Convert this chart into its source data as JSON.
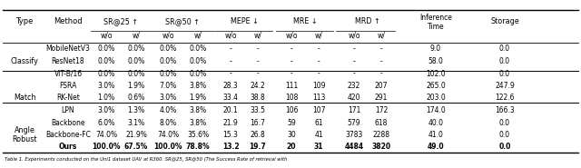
{
  "sections": [
    {
      "type": "Classify",
      "rows": [
        [
          "MobileNetV3",
          "0.0%",
          "0.0%",
          "0.0%",
          "0.0%",
          "-",
          "-",
          "-",
          "-",
          "-",
          "-",
          "9.0",
          "0.0"
        ],
        [
          "ResNet18",
          "0.0%",
          "0.0%",
          "0.0%",
          "0.0%",
          "-",
          "-",
          "-",
          "-",
          "-",
          "-",
          "58.0",
          "0.0"
        ],
        [
          "ViT-B/16",
          "0.0%",
          "0.0%",
          "0.0%",
          "0.0%",
          "-",
          "-",
          "-",
          "-",
          "-",
          "-",
          "102.0",
          "0.0"
        ]
      ]
    },
    {
      "type": "Match",
      "rows": [
        [
          "FSRA",
          "3.0%",
          "1.9%",
          "7.0%",
          "3.8%",
          "28.3",
          "24.2",
          "111",
          "109",
          "232",
          "207",
          "265.0",
          "247.9"
        ],
        [
          "RK-Net",
          "1.0%",
          "0.6%",
          "3.0%",
          "1.9%",
          "33.4",
          "38.8",
          "108",
          "113",
          "420",
          "291",
          "203.0",
          "122.6"
        ],
        [
          "LPN",
          "3.0%",
          "1.3%",
          "4.0%",
          "3.8%",
          "20.1",
          "33.5",
          "106",
          "107",
          "171",
          "172",
          "174.0",
          "166.3"
        ]
      ]
    },
    {
      "type": "Angle\nRobust",
      "rows": [
        [
          "Backbone",
          "6.0%",
          "3.1%",
          "8.0%",
          "3.8%",
          "21.9",
          "16.7",
          "59",
          "61",
          "579",
          "618",
          "40.0",
          "0.0"
        ],
        [
          "Backbone-FC",
          "74.0%",
          "21.9%",
          "74.0%",
          "35.6%",
          "15.3",
          "26.8",
          "30",
          "41",
          "3783",
          "2288",
          "41.0",
          "0.0"
        ],
        [
          "Ours",
          "100.0%",
          "67.5%",
          "100.0%",
          "78.8%",
          "13.2",
          "19.7",
          "20",
          "31",
          "4484",
          "3820",
          "49.0",
          "0.0"
        ]
      ],
      "bold_row": 2
    }
  ],
  "caption": "Table 1. Experiments conducted on the Uni1 dataset UAV at R360. SR@25, SR@50 (The Success Rate of retrieval with",
  "bg_color": "#ffffff"
}
